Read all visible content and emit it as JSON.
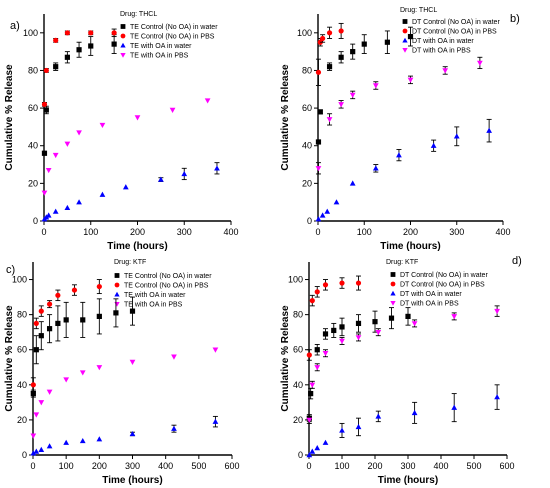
{
  "chart_data": [
    {
      "panel": "a)",
      "type": "scatter",
      "drug_label": "Drug: THCL",
      "xlabel": "Time (hours)",
      "ylabel": "Cumulative % Release",
      "xlim": [
        0,
        400
      ],
      "ylim": [
        0,
        110
      ],
      "xticks": [
        0,
        100,
        200,
        300,
        400
      ],
      "yticks": [
        0,
        20,
        40,
        60,
        80,
        100
      ],
      "legend_position": "top-right",
      "series": [
        {
          "name": "TE Control (No OA) in water",
          "marker": "square",
          "color": "#000000",
          "x": [
            1,
            5,
            25,
            50,
            75,
            100,
            150
          ],
          "y": [
            36,
            59,
            82,
            87,
            91,
            93,
            94
          ],
          "err": [
            1,
            2,
            2,
            3,
            4,
            5,
            5
          ]
        },
        {
          "name": "TE Control (No OA) in PBS",
          "marker": "circle",
          "color": "#ff0000",
          "x": [
            1,
            5,
            25,
            50,
            100,
            150
          ],
          "y": [
            62,
            80,
            96,
            100,
            100,
            100
          ],
          "err": [
            1,
            1,
            1,
            1,
            1,
            2
          ]
        },
        {
          "name": "TE with OA in water",
          "marker": "triangle-up",
          "color": "#0000ff",
          "x": [
            1,
            5,
            10,
            25,
            50,
            75,
            125,
            175,
            250,
            300,
            370
          ],
          "y": [
            1,
            2,
            3,
            5,
            7,
            10,
            14,
            18,
            22,
            25,
            28
          ],
          "err": [
            0,
            0,
            0,
            0,
            0,
            0,
            0,
            0,
            1,
            3,
            3
          ]
        },
        {
          "name": "TE with OA in PBS",
          "marker": "triangle-down",
          "color": "#ff00ff",
          "x": [
            1,
            10,
            25,
            50,
            75,
            125,
            200,
            275,
            350
          ],
          "y": [
            15,
            27,
            35,
            41,
            47,
            51,
            55,
            59,
            64
          ],
          "err": [
            0,
            0,
            0,
            0,
            0,
            0,
            0,
            0,
            0
          ]
        }
      ]
    },
    {
      "panel": "b)",
      "type": "scatter",
      "drug_label": "Drug: THCL",
      "xlabel": "Time (hours)",
      "ylabel": "Cumulative % Release",
      "xlim": [
        0,
        400
      ],
      "ylim": [
        0,
        110
      ],
      "xticks": [
        0,
        100,
        200,
        300,
        400
      ],
      "yticks": [
        0,
        20,
        40,
        60,
        80,
        100
      ],
      "legend_position": "top-right",
      "series": [
        {
          "name": "DT Control (No OA) in water",
          "marker": "square",
          "color": "#000000",
          "x": [
            1,
            5,
            25,
            50,
            75,
            100,
            150,
            200
          ],
          "y": [
            42,
            58,
            82,
            87,
            90,
            94,
            95,
            98
          ],
          "err": [
            1,
            1,
            2,
            3,
            4,
            5,
            6,
            5
          ]
        },
        {
          "name": "DT Control (No OA) in PBS",
          "marker": "circle",
          "color": "#ff0000",
          "x": [
            1,
            5,
            10,
            25,
            50
          ],
          "y": [
            79,
            95,
            97,
            100,
            101
          ],
          "err": [
            7,
            2,
            2,
            3,
            4
          ]
        },
        {
          "name": "DT with OA in water",
          "marker": "triangle-up",
          "color": "#0000ff",
          "x": [
            1,
            10,
            20,
            40,
            75,
            125,
            175,
            250,
            300,
            370
          ],
          "y": [
            1,
            3,
            5,
            10,
            20,
            28,
            35,
            40,
            45,
            48
          ],
          "err": [
            0,
            0,
            0,
            0,
            0,
            2,
            3,
            3,
            5,
            6
          ]
        },
        {
          "name": "DT with OA in PBS",
          "marker": "triangle-down",
          "color": "#ff00ff",
          "x": [
            1,
            25,
            50,
            75,
            125,
            200,
            275,
            350
          ],
          "y": [
            28,
            54,
            62,
            67,
            72,
            75,
            80,
            84
          ],
          "err": [
            3,
            3,
            2,
            2,
            2,
            2,
            2,
            3
          ]
        }
      ]
    },
    {
      "panel": "c)",
      "type": "scatter",
      "drug_label": "Drug: KTF",
      "xlabel": "Time (hours)",
      "ylabel": "Cumulative % Release",
      "xlim": [
        0,
        600
      ],
      "ylim": [
        0,
        110
      ],
      "xticks": [
        0,
        100,
        200,
        300,
        400,
        500,
        600
      ],
      "yticks": [
        0,
        20,
        40,
        60,
        80,
        100
      ],
      "legend_position": "top-right",
      "series": [
        {
          "name": "TE Control (No OA) in water",
          "marker": "square",
          "color": "#000000",
          "x": [
            1,
            10,
            25,
            50,
            75,
            100,
            150,
            200,
            250,
            300
          ],
          "y": [
            35,
            60,
            68,
            72,
            75,
            77,
            77,
            79,
            81,
            82
          ],
          "err": [
            2,
            8,
            8,
            8,
            10,
            10,
            10,
            10,
            8,
            8
          ]
        },
        {
          "name": "TE Control (No OA) in PBS",
          "marker": "circle",
          "color": "#ff0000",
          "x": [
            1,
            10,
            25,
            50,
            75,
            125,
            200
          ],
          "y": [
            40,
            75,
            82,
            86,
            91,
            94,
            96
          ],
          "err": [
            4,
            3,
            3,
            2,
            3,
            3,
            4
          ]
        },
        {
          "name": "TE with OA in water",
          "marker": "triangle-up",
          "color": "#0000ff",
          "x": [
            1,
            10,
            25,
            50,
            100,
            150,
            200,
            300,
            425,
            550
          ],
          "y": [
            1,
            2,
            3,
            5,
            7,
            8,
            9,
            12,
            15,
            19
          ],
          "err": [
            0,
            0,
            0,
            0,
            0,
            0,
            0,
            1,
            2,
            3
          ]
        },
        {
          "name": "TE with OA in PBS",
          "marker": "triangle-down",
          "color": "#ff00ff",
          "x": [
            1,
            10,
            25,
            50,
            100,
            150,
            200,
            300,
            425,
            550
          ],
          "y": [
            11,
            23,
            30,
            36,
            43,
            47,
            50,
            53,
            56,
            60
          ],
          "err": [
            0,
            0,
            0,
            0,
            0,
            0,
            0,
            0,
            0,
            0
          ]
        }
      ]
    },
    {
      "panel": "d)",
      "type": "scatter",
      "drug_label": "Drug: KTF",
      "xlabel": "Time (hours)",
      "ylabel": "Cumulative % Release",
      "xlim": [
        0,
        600
      ],
      "ylim": [
        0,
        110
      ],
      "xticks": [
        0,
        100,
        200,
        300,
        400,
        500,
        600
      ],
      "yticks": [
        0,
        20,
        40,
        60,
        80,
        100
      ],
      "legend_position": "top-right",
      "series": [
        {
          "name": "DT Control (No OA) in water",
          "marker": "square",
          "color": "#000000",
          "x": [
            1,
            5,
            25,
            50,
            75,
            100,
            150,
            200,
            250,
            300
          ],
          "y": [
            21,
            35,
            60,
            69,
            71,
            73,
            75,
            76,
            78,
            79
          ],
          "err": [
            2,
            3,
            3,
            3,
            4,
            5,
            5,
            6,
            6,
            5
          ]
        },
        {
          "name": "DT Control (No OA) in PBS",
          "marker": "circle",
          "color": "#ff0000",
          "x": [
            1,
            10,
            25,
            50,
            100,
            150
          ],
          "y": [
            57,
            88,
            93,
            97,
            98,
            98
          ],
          "err": [
            3,
            3,
            3,
            3,
            3,
            4
          ]
        },
        {
          "name": "DT with OA in water",
          "marker": "triangle-up",
          "color": "#0000ff",
          "x": [
            1,
            10,
            25,
            50,
            100,
            150,
            210,
            320,
            440,
            570
          ],
          "y": [
            0,
            2,
            4,
            7,
            14,
            16,
            22,
            24,
            27,
            33
          ],
          "err": [
            0,
            0,
            0,
            0,
            4,
            5,
            3,
            6,
            8,
            7
          ]
        },
        {
          "name": "DT with OA in PBS",
          "marker": "triangle-down",
          "color": "#ff00ff",
          "x": [
            1,
            10,
            25,
            50,
            100,
            150,
            210,
            320,
            440,
            570
          ],
          "y": [
            20,
            40,
            50,
            58,
            65,
            67,
            70,
            75,
            79,
            82
          ],
          "err": [
            2,
            2,
            2,
            2,
            2,
            2,
            2,
            2,
            2,
            3
          ]
        }
      ]
    }
  ]
}
